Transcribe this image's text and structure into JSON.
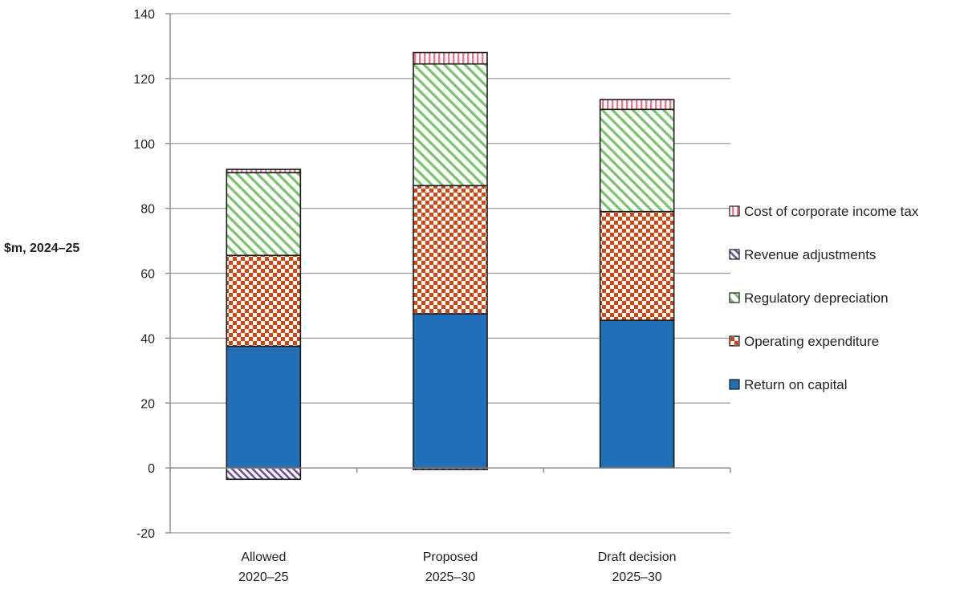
{
  "chart_data": {
    "type": "bar",
    "stacked": true,
    "ylabel": "$m, 2024–25",
    "ylim": [
      -20,
      140
    ],
    "yticks": [
      -20,
      0,
      20,
      40,
      60,
      80,
      100,
      120,
      140
    ],
    "grid": true,
    "legend_position": "right",
    "categories": [
      [
        "Allowed",
        "2020–25"
      ],
      [
        "Proposed",
        "2025–30"
      ],
      [
        "Draft decision",
        "2025–30"
      ]
    ],
    "series": [
      {
        "name": "Return on capital",
        "color": "#2170b8",
        "pattern": "solid",
        "values": [
          37.5,
          47.5,
          45.5
        ]
      },
      {
        "name": "Operating expenditure",
        "color": "#d1450f",
        "pattern": "checker",
        "values": [
          28.0,
          39.5,
          33.5
        ]
      },
      {
        "name": "Regulatory depreciation",
        "color": "#79c36a",
        "pattern": "diagonal",
        "values": [
          25.5,
          37.5,
          31.5
        ]
      },
      {
        "name": "Revenue adjustments",
        "color": "#6b4f9e",
        "pattern": "diagonal-dense",
        "values": [
          -3.5,
          -0.5,
          0.0
        ]
      },
      {
        "name": "Cost of corporate income tax",
        "color": "#e8788e",
        "pattern": "vertical",
        "values": [
          1.0,
          3.5,
          3.0
        ]
      }
    ],
    "legend_order": [
      "Cost of corporate income tax",
      "Revenue adjustments",
      "Regulatory depreciation",
      "Operating expenditure",
      "Return on capital"
    ]
  }
}
